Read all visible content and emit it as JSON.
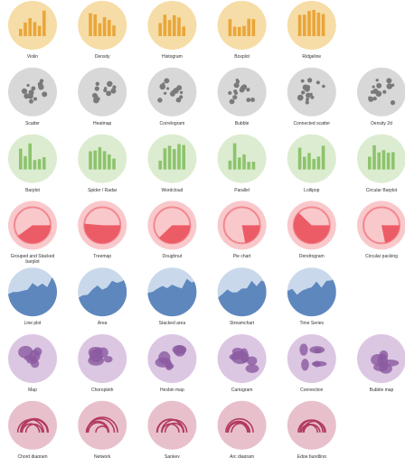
{
  "sections": [
    {
      "bg": "#f6dca6",
      "fg": "#e9a63a",
      "items": [
        "Violin",
        "Density",
        "Histogram",
        "Boxplot",
        "Ridgeline"
      ]
    },
    {
      "bg": "#d8d8d8",
      "fg": "#7a7a7a",
      "items": [
        "Scatter",
        "Heatmap",
        "Correlogram",
        "Bubble",
        "Connected scatter",
        "Density 2d"
      ]
    },
    {
      "bg": "#dcecd0",
      "fg": "#8dc36c",
      "items": [
        "Barplot",
        "Spider / Radar",
        "Wordcloud",
        "Parallel",
        "Lollipop",
        "Circular Barplot"
      ]
    },
    {
      "bg": "#f9c8cb",
      "fg": "#ec5c67",
      "items": [
        "Grouped and Stacked barplot",
        "Treemap",
        "Doughnut",
        "Pie chart",
        "Dendrogram",
        "Circular packing"
      ]
    },
    {
      "bg": "#c9d9eb",
      "fg": "#4b78b6",
      "items": [
        "Line plot",
        "Area",
        "Stacked area",
        "Streamchart",
        "Time Series"
      ]
    },
    {
      "bg": "#dcc7e3",
      "fg": "#8b5aa0",
      "items": [
        "Map",
        "Choropleth",
        "Hexbin map",
        "Cartogram",
        "Connection",
        "Bubble map"
      ]
    },
    {
      "bg": "#e8c0cb",
      "fg": "#b13a5e",
      "items": [
        "Chord diagram",
        "Network",
        "Sankey",
        "Arc diagram",
        "Edge bundling"
      ]
    }
  ]
}
